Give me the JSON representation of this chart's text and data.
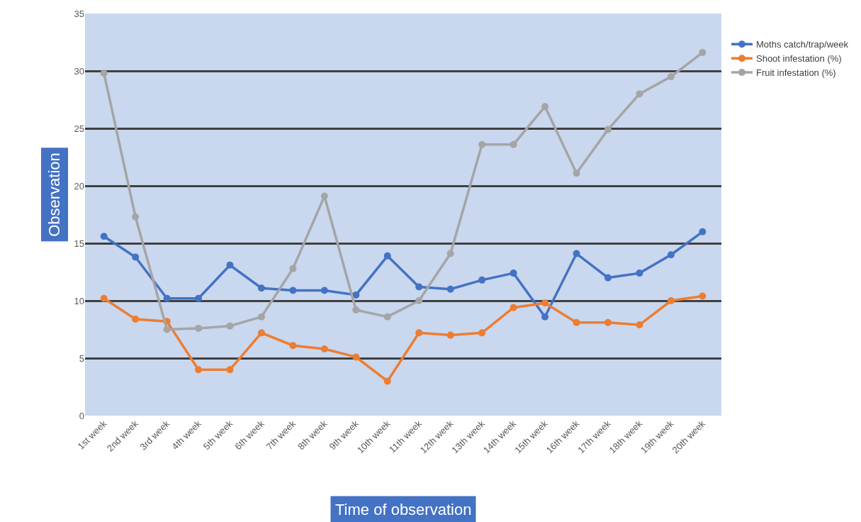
{
  "chart_data": {
    "type": "line",
    "xlabel": "Time of observation",
    "ylabel": "Observation",
    "categories": [
      "1st week",
      "2nd week",
      "3rd week",
      "4th week",
      "5th week",
      "6th week",
      "7th week",
      "8th week",
      "9th week",
      "10th week",
      "11th week",
      "12th week",
      "13th week",
      "14th week",
      "15th week",
      "16th week",
      "17th week",
      "18th week",
      "19th week",
      "20th week"
    ],
    "series": [
      {
        "name": "Moths catch/trap/week",
        "color": "#4472c4",
        "values": [
          15.6,
          13.8,
          10.2,
          10.2,
          13.1,
          11.1,
          10.9,
          10.9,
          10.5,
          13.9,
          11.2,
          11,
          11.8,
          12.4,
          8.6,
          14.1,
          12,
          12.4,
          14,
          16
        ]
      },
      {
        "name": "Shoot infestation (%)",
        "color": "#ed7d31",
        "values": [
          10.2,
          8.4,
          8.2,
          4,
          4,
          7.2,
          6.1,
          5.8,
          5.1,
          3,
          7.2,
          7,
          7.2,
          9.4,
          9.8,
          8.1,
          8.1,
          7.9,
          10,
          10.4
        ]
      },
      {
        "name": "Fruit infestation (%)",
        "color": "#a5a5a5",
        "values": [
          29.8,
          17.3,
          7.5,
          7.6,
          7.8,
          8.6,
          12.8,
          19.1,
          9.2,
          8.6,
          10,
          14.1,
          23.6,
          23.6,
          26.9,
          21.1,
          24.9,
          28,
          29.5,
          31.6
        ]
      }
    ],
    "ylim": [
      0,
      35
    ],
    "yticks": [
      0,
      5,
      10,
      15,
      20,
      25,
      30,
      35
    ],
    "grid": "y",
    "legend": "right",
    "marker": "circle",
    "line_style": "solid"
  }
}
